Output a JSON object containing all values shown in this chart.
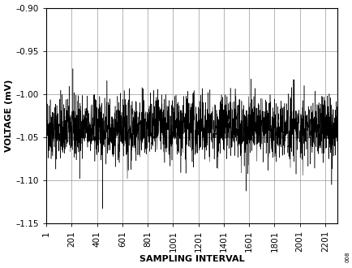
{
  "title": "",
  "xlabel": "SAMPLING INTERVAL",
  "ylabel": "VOLTAGE (mV)",
  "xlim": [
    1,
    2301
  ],
  "ylim": [
    -1.15,
    -0.9
  ],
  "xticks": [
    1,
    201,
    401,
    601,
    801,
    1001,
    1201,
    1401,
    1601,
    1801,
    2001,
    2201
  ],
  "yticks": [
    -1.15,
    -1.1,
    -1.05,
    -1.0,
    -0.95,
    -0.9
  ],
  "ytick_labels": [
    "–1.15",
    "–1.10",
    "–1.05",
    "–1.00",
    "–0.95",
    "–0.90"
  ],
  "xtick_labels": [
    "1",
    "201",
    "401",
    "601",
    "801",
    "1001",
    "1201",
    "1401",
    "1601",
    "1801",
    "2001",
    "2201"
  ],
  "mean_voltage": -1.04,
  "std_voltage": 0.018,
  "n_samples": 2300,
  "line_color": "#000000",
  "bg_color": "#ffffff",
  "grid_color": "#999999",
  "seed": 42,
  "label_fontsize": 8,
  "tick_fontsize": 7.5
}
